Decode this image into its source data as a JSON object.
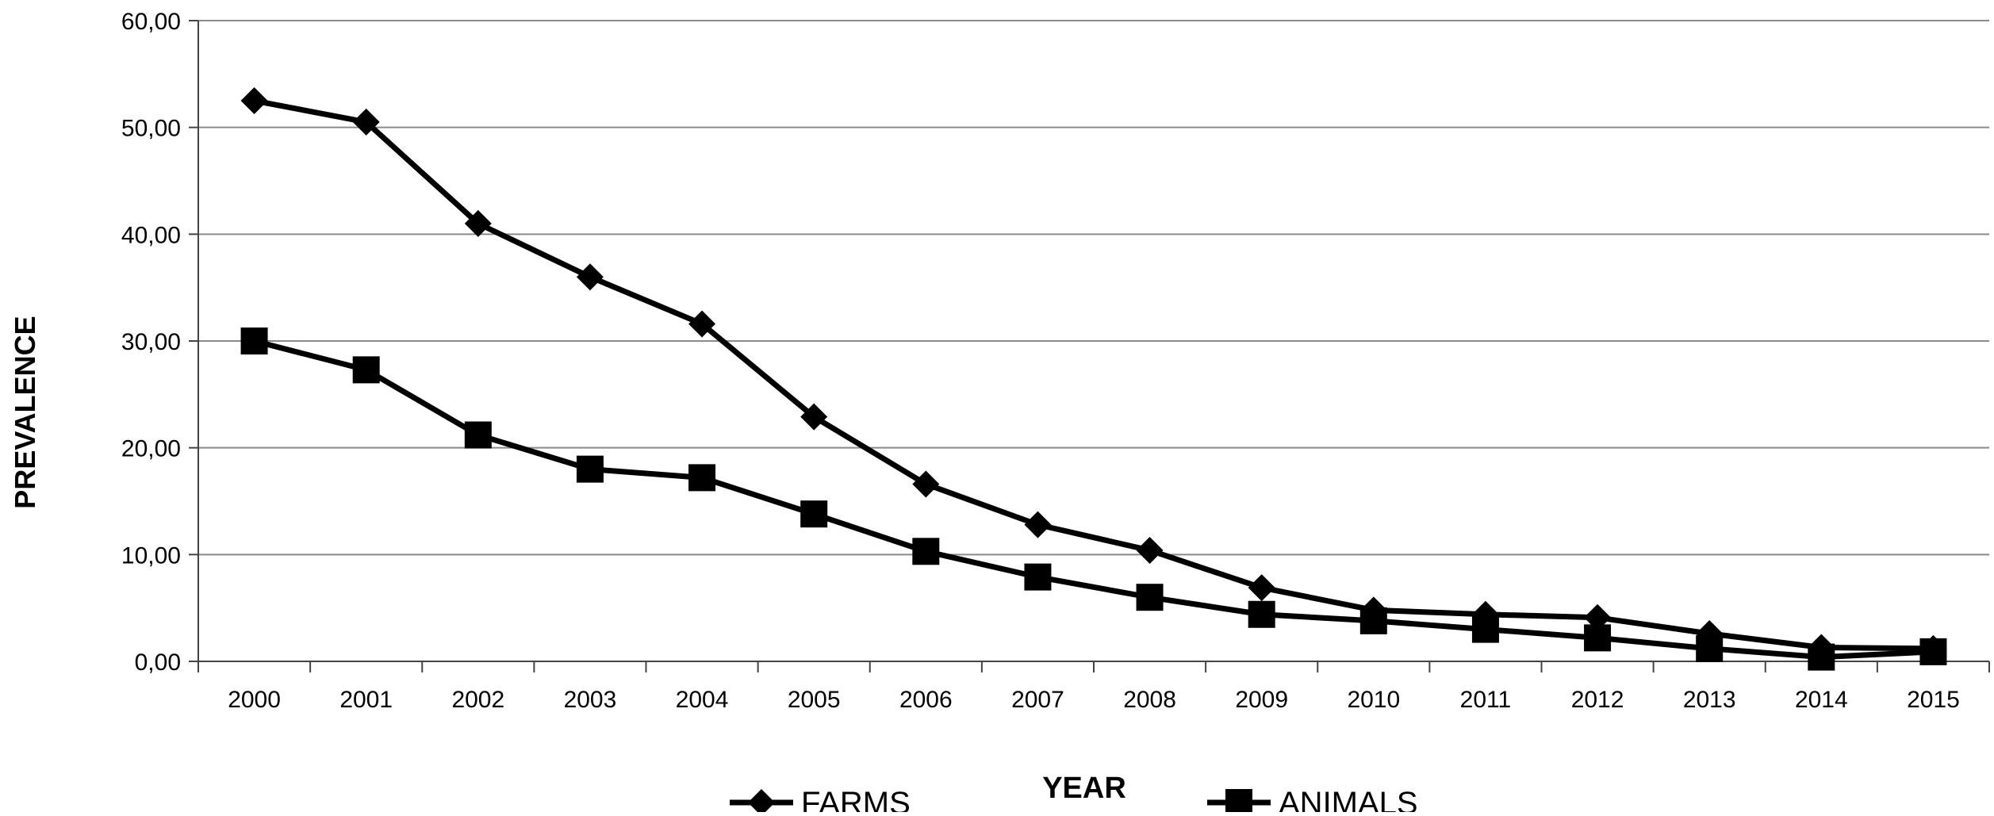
{
  "chart_data": {
    "type": "line",
    "title": "",
    "xlabel": "YEAR",
    "ylabel": "PREVALENCE",
    "categories": [
      "2000",
      "2001",
      "2002",
      "2003",
      "2004",
      "2005",
      "2006",
      "2007",
      "2008",
      "2009",
      "2010",
      "2011",
      "2012",
      "2013",
      "2014",
      "2015"
    ],
    "y_ticks": [
      "0,00",
      "10,00",
      "20,00",
      "30,00",
      "40,00",
      "50,00",
      "60,00"
    ],
    "ylim": [
      0,
      60
    ],
    "grid": "horizontal",
    "legend_position": "bottom",
    "series": [
      {
        "name": "FARMS",
        "marker": "diamond",
        "color": "#000000",
        "values": [
          52.5,
          50.5,
          41.0,
          36.0,
          31.6,
          22.9,
          16.6,
          12.8,
          10.4,
          6.9,
          4.8,
          4.4,
          4.1,
          2.6,
          1.3,
          1.2
        ]
      },
      {
        "name": "ANIMALS",
        "marker": "square",
        "color": "#000000",
        "values": [
          30.0,
          27.3,
          21.2,
          18.0,
          17.2,
          13.8,
          10.3,
          7.9,
          6.0,
          4.4,
          3.8,
          3.0,
          2.2,
          1.2,
          0.4,
          0.9
        ]
      }
    ]
  }
}
